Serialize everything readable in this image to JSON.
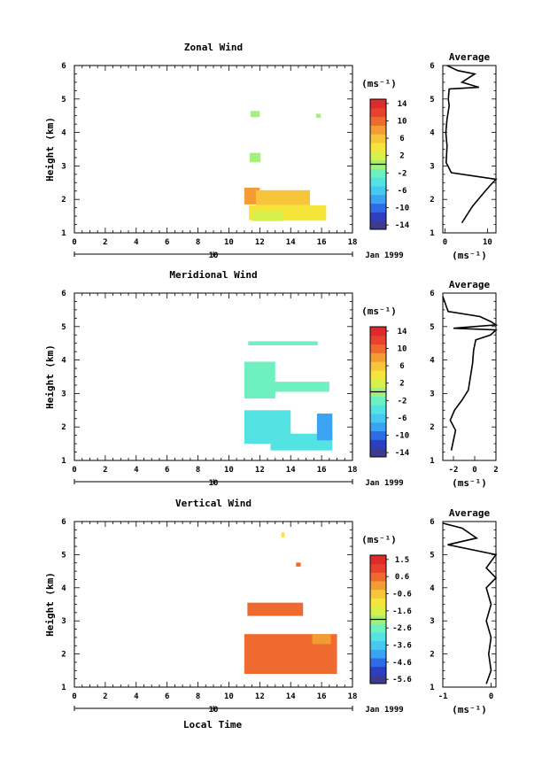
{
  "figure": {
    "date_label": "Jan 1999",
    "bottom_xlabel": "Local Time",
    "unit_label": "(ms⁻¹)"
  },
  "chart_data": [
    {
      "type": "heatmap",
      "title": "Zonal Wind",
      "xlabel": "",
      "ylabel": "Height (km)",
      "xlim": [
        0,
        18
      ],
      "ylim": [
        1,
        6
      ],
      "xticks": [
        0,
        2,
        4,
        6,
        8,
        10,
        12,
        14,
        16,
        18
      ],
      "yticks": [
        1,
        2,
        3,
        4,
        5,
        6
      ],
      "sublabel": "10",
      "colorbar": {
        "label": "(ms⁻¹)",
        "ticks": [
          "14",
          "10",
          "6",
          "2",
          "-2",
          "-6",
          "-10",
          "-14"
        ],
        "range": [
          -16,
          16
        ]
      },
      "cells": [
        {
          "t": 11.7,
          "z": 4.55,
          "v": 0,
          "w": 0.6,
          "h": 0.18
        },
        {
          "t": 15.8,
          "z": 4.5,
          "v": 0,
          "w": 0.3,
          "h": 0.12
        },
        {
          "t": 11.7,
          "z": 3.25,
          "v": 0,
          "w": 0.7,
          "h": 0.28
        },
        {
          "t": 11.5,
          "z": 2.1,
          "v": 9,
          "w": 1.0,
          "h": 0.5
        },
        {
          "t": 13.5,
          "z": 2.05,
          "v": 7,
          "w": 3.5,
          "h": 0.45
        },
        {
          "t": 13.8,
          "z": 1.6,
          "v": 4,
          "w": 5.0,
          "h": 0.45
        },
        {
          "t": 12.5,
          "z": 1.5,
          "v": 2,
          "w": 2.0,
          "h": 0.3
        }
      ],
      "average": {
        "title": "Average",
        "xlabel": "(ms⁻¹)",
        "xlim": [
          -0.5,
          12
        ],
        "ylim": [
          1,
          6
        ],
        "xticks": [
          0,
          10
        ],
        "points": [
          [
            4,
            1.3
          ],
          [
            5,
            1.5
          ],
          [
            6.5,
            1.8
          ],
          [
            8.5,
            2.1
          ],
          [
            10.5,
            2.4
          ],
          [
            12,
            2.6
          ],
          [
            1.5,
            2.8
          ],
          [
            0.3,
            3.1
          ],
          [
            0.5,
            3.6
          ],
          [
            0.2,
            4.0
          ],
          [
            0.5,
            4.4
          ],
          [
            1,
            4.8
          ],
          [
            0.8,
            5.0
          ],
          [
            1,
            5.3
          ],
          [
            8,
            5.35
          ],
          [
            4,
            5.5
          ],
          [
            7,
            5.75
          ],
          [
            3,
            5.85
          ],
          [
            0.5,
            6.0
          ]
        ]
      }
    },
    {
      "type": "heatmap",
      "title": "Meridional Wind",
      "xlabel": "",
      "ylabel": "Height (km)",
      "xlim": [
        0,
        18
      ],
      "ylim": [
        1,
        6
      ],
      "xticks": [
        0,
        2,
        4,
        6,
        8,
        10,
        12,
        14,
        16,
        18
      ],
      "yticks": [
        1,
        2,
        3,
        4,
        5,
        6
      ],
      "sublabel": "10",
      "colorbar": {
        "label": "(ms⁻¹)",
        "ticks": [
          "14",
          "10",
          "6",
          "2",
          "-2",
          "-6",
          "-10",
          "-14"
        ],
        "range": [
          -16,
          16
        ]
      },
      "cells": [
        {
          "t": 13.5,
          "z": 4.5,
          "v": -2,
          "w": 4.5,
          "h": 0.12
        },
        {
          "t": 12.0,
          "z": 3.4,
          "v": -2,
          "w": 2.0,
          "h": 1.1
        },
        {
          "t": 14.5,
          "z": 3.2,
          "v": -2,
          "w": 4.0,
          "h": 0.3
        },
        {
          "t": 12.5,
          "z": 2.0,
          "v": -4,
          "w": 3.0,
          "h": 1.0
        },
        {
          "t": 14.7,
          "z": 1.55,
          "v": -5,
          "w": 4.0,
          "h": 0.5
        },
        {
          "t": 16.2,
          "z": 2.0,
          "v": -8,
          "w": 1.0,
          "h": 0.8
        }
      ],
      "average": {
        "title": "Average",
        "xlabel": "(ms⁻¹)",
        "xlim": [
          -3,
          2
        ],
        "ylim": [
          1,
          6
        ],
        "xticks": [
          -2,
          0,
          2
        ],
        "points": [
          [
            -2.2,
            1.3
          ],
          [
            -2.0,
            1.6
          ],
          [
            -1.8,
            1.9
          ],
          [
            -2.3,
            2.2
          ],
          [
            -1.9,
            2.5
          ],
          [
            -1.2,
            2.8
          ],
          [
            -0.6,
            3.1
          ],
          [
            -0.4,
            3.5
          ],
          [
            -0.2,
            3.9
          ],
          [
            -0.1,
            4.3
          ],
          [
            0.1,
            4.6
          ],
          [
            1.5,
            4.75
          ],
          [
            2,
            4.9
          ],
          [
            -2,
            4.95
          ],
          [
            2,
            5.05
          ],
          [
            1.5,
            5.15
          ],
          [
            0.5,
            5.3
          ],
          [
            -2.5,
            5.45
          ],
          [
            -3,
            5.9
          ]
        ]
      }
    },
    {
      "type": "heatmap",
      "title": "Vertical Wind",
      "xlabel": "Local Time",
      "ylabel": "Height (km)",
      "xlim": [
        0,
        18
      ],
      "ylim": [
        1,
        6
      ],
      "xticks": [
        0,
        2,
        4,
        6,
        8,
        10,
        12,
        14,
        16,
        18
      ],
      "yticks": [
        1,
        2,
        3,
        4,
        5,
        6
      ],
      "sublabel": "10",
      "colorbar": {
        "label": "(ms⁻¹)",
        "ticks": [
          "1.5",
          "0.6",
          "-0.6",
          "-1.6",
          "-2.6",
          "-3.6",
          "-4.6",
          "-5.6"
        ],
        "range": [
          -6,
          2
        ]
      },
      "cells": [
        {
          "t": 13.5,
          "z": 5.6,
          "v": -1,
          "w": 0.2,
          "h": 0.15
        },
        {
          "t": 14.5,
          "z": 4.7,
          "v": 0.6,
          "w": 0.3,
          "h": 0.12
        },
        {
          "t": 13.0,
          "z": 3.35,
          "v": 0.6,
          "w": 3.6,
          "h": 0.4
        },
        {
          "t": 14.0,
          "z": 2.0,
          "v": 0.6,
          "w": 6.0,
          "h": 1.2
        },
        {
          "t": 16.0,
          "z": 2.45,
          "v": 0.3,
          "w": 1.2,
          "h": 0.3
        }
      ],
      "average": {
        "title": "Average",
        "xlabel": "(ms⁻¹)",
        "xlim": [
          -1,
          0.1
        ],
        "ylim": [
          1,
          6
        ],
        "xticks": [
          -1,
          0
        ],
        "points": [
          [
            -0.1,
            1.1
          ],
          [
            0.0,
            1.5
          ],
          [
            -0.05,
            2.0
          ],
          [
            0.0,
            2.5
          ],
          [
            -0.1,
            3.0
          ],
          [
            0.0,
            3.5
          ],
          [
            -0.1,
            4.0
          ],
          [
            0.1,
            4.3
          ],
          [
            -0.1,
            4.6
          ],
          [
            0.1,
            5.0
          ],
          [
            -0.9,
            5.3
          ],
          [
            -0.3,
            5.5
          ],
          [
            -0.6,
            5.8
          ],
          [
            -1.0,
            5.95
          ]
        ]
      }
    }
  ]
}
